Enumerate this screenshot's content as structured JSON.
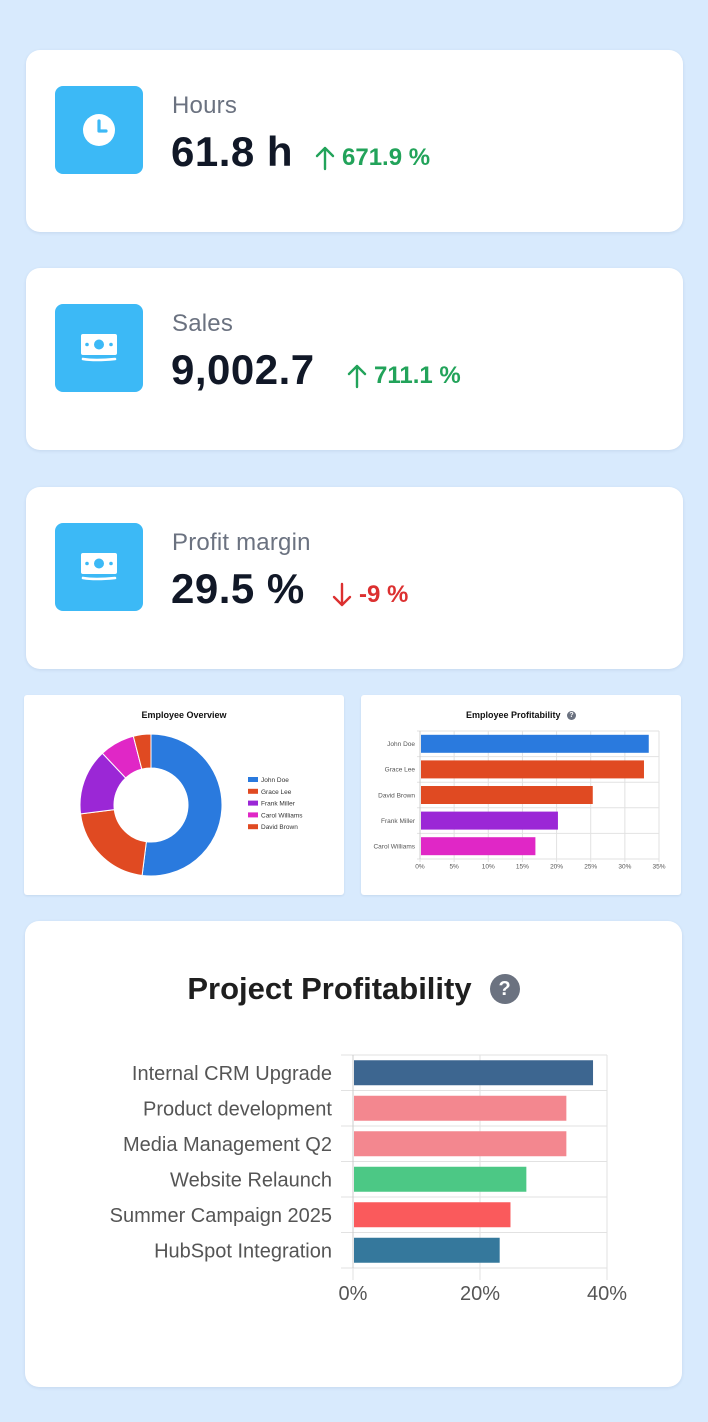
{
  "kpis": [
    {
      "label": "Hours",
      "value": "61.8 h",
      "change": "671.9 %",
      "direction": "up",
      "icon": "clock-icon"
    },
    {
      "label": "Sales",
      "value": "9,002.7",
      "change": "711.1 %",
      "direction": "up",
      "icon": "cash-icon"
    },
    {
      "label": "Profit margin",
      "value": "29.5 %",
      "change": "-9 %",
      "direction": "down",
      "icon": "cash-icon"
    }
  ],
  "colors": {
    "background": "#d8eafd",
    "icon_tile": "#3cb9f6",
    "up": "#22a35a",
    "down": "#dc3030"
  },
  "employee_overview": {
    "chart_data": {
      "type": "pie",
      "title": "Employee Overview",
      "variant": "donut",
      "legend_position": "right",
      "series": [
        {
          "name": "John Doe",
          "value": 52,
          "color": "#2a7ade"
        },
        {
          "name": "Grace Lee",
          "value": 21,
          "color": "#e04a22"
        },
        {
          "name": "Frank Miller",
          "value": 15,
          "color": "#9b27d6"
        },
        {
          "name": "Carol Williams",
          "value": 8,
          "color": "#e027c6"
        },
        {
          "name": "David Brown",
          "value": 4,
          "color": "#e04a22"
        }
      ]
    }
  },
  "employee_profitability": {
    "help_icon": "question-circle-icon",
    "chart_data": {
      "type": "bar",
      "orientation": "horizontal",
      "title": "Employee Profitability",
      "categories": [
        "John Doe",
        "Grace Lee",
        "David Brown",
        "Frank Miller",
        "Carol Williams"
      ],
      "values": [
        33.5,
        32.8,
        25.3,
        20.2,
        16.9
      ],
      "colors": [
        "#2a7ade",
        "#e04a22",
        "#e04a22",
        "#9b27d6",
        "#e027c6"
      ],
      "xlim": [
        0,
        35
      ],
      "ticks": [
        "0%",
        "5%",
        "10%",
        "15%",
        "20%",
        "25%",
        "30%",
        "35%"
      ],
      "tick_values": [
        0,
        5,
        10,
        15,
        20,
        25,
        30,
        35
      ],
      "grid": true
    }
  },
  "project_profitability": {
    "help_icon": "question-circle-icon",
    "help_glyph": "?",
    "chart_data": {
      "type": "bar",
      "orientation": "horizontal",
      "title": "Project Profitability",
      "categories": [
        "Internal CRM Upgrade",
        "Product development",
        "Media Management Q2",
        "Website Relaunch",
        "Summer Campaign 2025",
        "HubSpot Integration"
      ],
      "values": [
        37.8,
        33.6,
        33.6,
        27.3,
        24.8,
        23.1
      ],
      "colors": [
        "#3d6690",
        "#f3878f",
        "#f3878f",
        "#4cc885",
        "#fa5a5c",
        "#35789c"
      ],
      "xlim": [
        0,
        40
      ],
      "ticks": [
        "0%",
        "20%",
        "40%"
      ],
      "tick_values": [
        0,
        20,
        40
      ],
      "grid": true
    }
  }
}
